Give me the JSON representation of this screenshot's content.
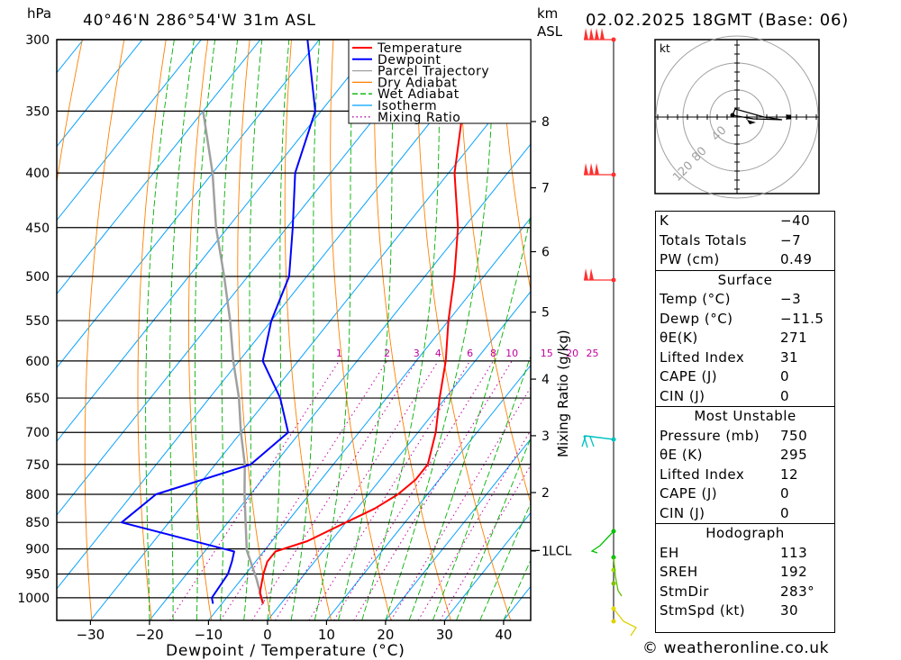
{
  "header": {
    "location": "40°46'N  286°54'W  31m  ASL",
    "datetime": "02.02.2025  18GMT  (Base: 06)",
    "units_left": "hPa",
    "units_km": "km",
    "units_asl": "ASL"
  },
  "chart_data": {
    "type": "skew-t",
    "xlabel": "Dewpoint / Temperature (°C)",
    "ylabel": "hPa",
    "x_ticks": [
      -30,
      -20,
      -10,
      0,
      10,
      20,
      30,
      40
    ],
    "pressure_ticks": [
      300,
      350,
      400,
      450,
      500,
      550,
      600,
      650,
      700,
      750,
      800,
      850,
      900,
      950,
      1000
    ],
    "km_ticks": [
      {
        "label": "8",
        "p": 358
      },
      {
        "label": "7",
        "p": 413
      },
      {
        "label": "6",
        "p": 474
      },
      {
        "label": "5",
        "p": 540
      },
      {
        "label": "4",
        "p": 624
      },
      {
        "label": "3",
        "p": 705
      },
      {
        "label": "2",
        "p": 797
      },
      {
        "label": "1",
        "p": 904
      }
    ],
    "lcl_label": "LCL",
    "lcl_pressure": 903,
    "mixing_ratio_label": "Mixing Ratio (g/kg)",
    "mixing_ratio_values": [
      1,
      2,
      3,
      4,
      6,
      8,
      10,
      15,
      20,
      25
    ],
    "legend": [
      "Temperature",
      "Dewpoint",
      "Parcel Trajectory",
      "Dry Adiabat",
      "Wet Adiabat",
      "Isotherm",
      "Mixing Ratio"
    ],
    "colors": {
      "temperature": "#ff0000",
      "dewpoint": "#0000ff",
      "parcel": "#a0a0a0",
      "dry_adiabat": "#ff8000",
      "wet_adiabat": "#00b000",
      "isotherm": "#00a0ff",
      "mixing_ratio": "#c000a0"
    },
    "temperature": [
      {
        "p": 1013,
        "t": -3
      },
      {
        "p": 990,
        "t": -5
      },
      {
        "p": 950,
        "t": -7
      },
      {
        "p": 925,
        "t": -8
      },
      {
        "p": 905,
        "t": -8
      },
      {
        "p": 885,
        "t": -4
      },
      {
        "p": 850,
        "t": 0
      },
      {
        "p": 825,
        "t": 3
      },
      {
        "p": 800,
        "t": 5
      },
      {
        "p": 775,
        "t": 6
      },
      {
        "p": 750,
        "t": 6
      },
      {
        "p": 700,
        "t": 3
      },
      {
        "p": 650,
        "t": -1
      },
      {
        "p": 600,
        "t": -5
      },
      {
        "p": 550,
        "t": -10
      },
      {
        "p": 500,
        "t": -15
      },
      {
        "p": 450,
        "t": -21
      },
      {
        "p": 400,
        "t": -29
      },
      {
        "p": 350,
        "t": -36
      },
      {
        "p": 300,
        "t": -46
      }
    ],
    "dewpoint": [
      {
        "p": 1013,
        "t": -11.5
      },
      {
        "p": 1000,
        "t": -12.5
      },
      {
        "p": 950,
        "t": -13
      },
      {
        "p": 925,
        "t": -14
      },
      {
        "p": 905,
        "t": -15
      },
      {
        "p": 850,
        "t": -38
      },
      {
        "p": 800,
        "t": -36
      },
      {
        "p": 750,
        "t": -24
      },
      {
        "p": 700,
        "t": -22
      },
      {
        "p": 650,
        "t": -28
      },
      {
        "p": 600,
        "t": -36
      },
      {
        "p": 550,
        "t": -40
      },
      {
        "p": 500,
        "t": -43
      },
      {
        "p": 450,
        "t": -49
      },
      {
        "p": 400,
        "t": -56
      },
      {
        "p": 350,
        "t": -61
      },
      {
        "p": 300,
        "t": -72
      }
    ],
    "parcel": [
      {
        "p": 1013,
        "t": -3
      },
      {
        "p": 960,
        "t": -7.5
      },
      {
        "p": 903,
        "t": -13
      },
      {
        "p": 850,
        "t": -17
      },
      {
        "p": 800,
        "t": -21
      },
      {
        "p": 750,
        "t": -25
      },
      {
        "p": 700,
        "t": -30
      },
      {
        "p": 650,
        "t": -35
      },
      {
        "p": 600,
        "t": -41
      },
      {
        "p": 550,
        "t": -47
      },
      {
        "p": 500,
        "t": -54
      },
      {
        "p": 450,
        "t": -62
      },
      {
        "p": 400,
        "t": -70
      },
      {
        "p": 350,
        "t": -80
      }
    ]
  },
  "hodograph": {
    "unit_label": "kt",
    "ring_labels": [
      "40",
      "80",
      "120"
    ]
  },
  "indices": {
    "basic": [
      {
        "label": "K",
        "value": "−40"
      },
      {
        "label": "Totals Totals",
        "value": "−7"
      },
      {
        "label": "PW (cm)",
        "value": "0.49"
      }
    ],
    "surface_title": "Surface",
    "surface": [
      {
        "label": "Temp (°C)",
        "value": "−3"
      },
      {
        "label": "Dewp (°C)",
        "value": "−11.5"
      },
      {
        "label": "θE(K)",
        "value": "271"
      },
      {
        "label": "Lifted Index",
        "value": "31"
      },
      {
        "label": "CAPE (J)",
        "value": "0"
      },
      {
        "label": "CIN (J)",
        "value": "0"
      }
    ],
    "mu_title": "Most Unstable",
    "mu": [
      {
        "label": "Pressure (mb)",
        "value": "750"
      },
      {
        "label": "θE (K)",
        "value": "295"
      },
      {
        "label": "Lifted Index",
        "value": "12"
      },
      {
        "label": "CAPE (J)",
        "value": "0"
      },
      {
        "label": "CIN (J)",
        "value": "0"
      }
    ],
    "hodo_title": "Hodograph",
    "hodo": [
      {
        "label": "EH",
        "value": "113"
      },
      {
        "label": "SREH",
        "value": "192"
      },
      {
        "label": "StmDir",
        "value": "283°"
      },
      {
        "label": "StmSpd (kt)",
        "value": "30"
      }
    ]
  },
  "credit": "© weatheronline.co.uk"
}
